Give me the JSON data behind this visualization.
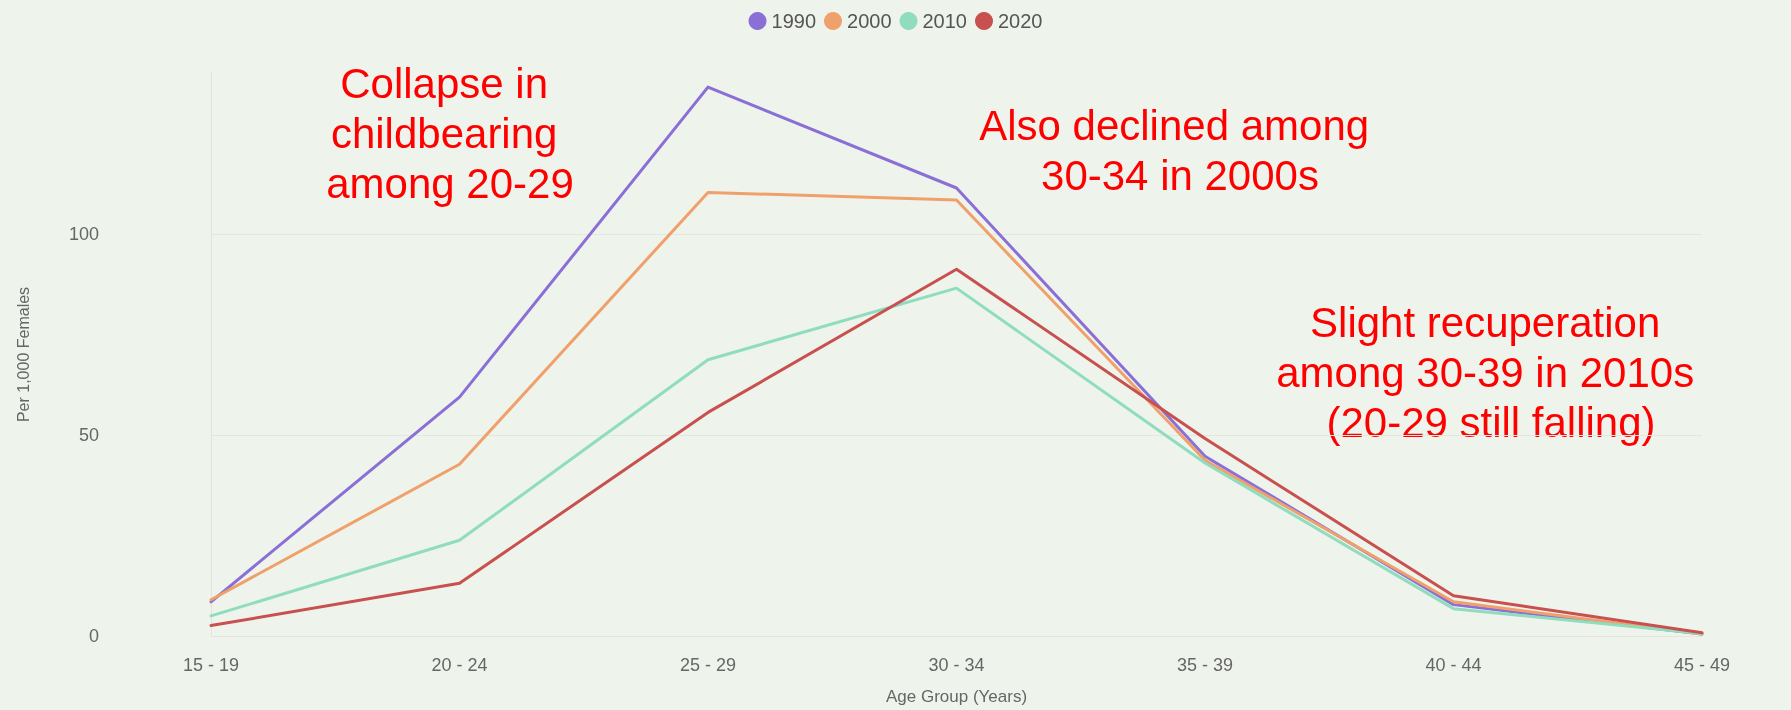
{
  "chart_data": {
    "type": "line",
    "xlabel": "Age Group (Years)",
    "ylabel": "Per 1,000 Females",
    "categories": [
      "15 - 19",
      "20 - 24",
      "25 - 29",
      "30 - 34",
      "35 - 39",
      "40 - 44",
      "45 - 49"
    ],
    "series": [
      {
        "name": "1990",
        "color": "#8a6fd6",
        "values": [
          8.5,
          59.4,
          136.5,
          111.4,
          44.7,
          7.8,
          0.5
        ]
      },
      {
        "name": "2000",
        "color": "#f0a06a",
        "values": [
          9,
          42.7,
          110.3,
          108.4,
          43.7,
          8.5,
          0.5
        ]
      },
      {
        "name": "2010",
        "color": "#8fdcbf",
        "values": [
          5,
          23.8,
          68.7,
          86.5,
          43,
          6.8,
          0.6
        ]
      },
      {
        "name": "2020",
        "color": "#c8504f",
        "values": [
          2.6,
          13.1,
          55.6,
          91.2,
          49.1,
          10,
          0.8
        ]
      }
    ],
    "ylim": [
      0,
      140
    ],
    "yticks": [
      0,
      50,
      100
    ],
    "grid": "y",
    "legend": "top",
    "marker": "none",
    "line_style": "solid",
    "annotations": [
      "Collapse in childbearing among 20-29",
      "Also declined among 30-34 in 2000s",
      "Slight recuperation among 30-39 in 2010s (20-29 still falling)"
    ]
  }
}
